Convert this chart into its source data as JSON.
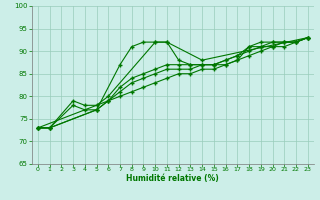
{
  "background_color": "#cceee8",
  "grid_color": "#99ccbb",
  "line_color": "#007700",
  "xlabel": "Humidité relative (%)",
  "xlim": [
    -0.5,
    23.5
  ],
  "ylim": [
    65,
    100
  ],
  "yticks": [
    65,
    70,
    75,
    80,
    85,
    90,
    95,
    100
  ],
  "xticks": [
    0,
    1,
    2,
    3,
    4,
    5,
    6,
    7,
    8,
    9,
    10,
    11,
    12,
    13,
    14,
    15,
    16,
    17,
    18,
    19,
    20,
    21,
    22,
    23
  ],
  "line_a_x": [
    0,
    1,
    3,
    4,
    5,
    7,
    8,
    9,
    10,
    11,
    12,
    13,
    14,
    15,
    16,
    17,
    18,
    19,
    20,
    21,
    22,
    23
  ],
  "line_a_y": [
    73,
    73,
    78,
    77,
    77,
    87,
    91,
    92,
    92,
    92,
    88,
    87,
    87,
    87,
    87,
    88,
    91,
    92,
    92,
    92,
    92,
    93
  ],
  "line_b_x": [
    0,
    1,
    3,
    4,
    5,
    6,
    10,
    11,
    14,
    23
  ],
  "line_b_y": [
    73,
    73,
    79,
    78,
    78,
    80,
    92,
    92,
    88,
    93
  ],
  "line_c_x": [
    0,
    1,
    5,
    6,
    7,
    8,
    9,
    10,
    11,
    12,
    13,
    14,
    15,
    16,
    17,
    18,
    19,
    20,
    21,
    22,
    23
  ],
  "line_c_y": [
    73,
    73,
    77,
    79,
    82,
    84,
    85,
    86,
    87,
    87,
    87,
    87,
    87,
    88,
    89,
    91,
    91,
    92,
    92,
    92,
    93
  ],
  "line_d_x": [
    0,
    1,
    5,
    6,
    7,
    8,
    9,
    10,
    11,
    12,
    13,
    14,
    15,
    16,
    17,
    18,
    19,
    20,
    21,
    22,
    23
  ],
  "line_d_y": [
    73,
    73,
    77,
    79,
    81,
    83,
    84,
    85,
    86,
    86,
    86,
    87,
    87,
    88,
    89,
    90,
    91,
    91,
    92,
    92,
    93
  ],
  "line_e_x": [
    0,
    6,
    7,
    8,
    9,
    10,
    11,
    12,
    13,
    14,
    15,
    16,
    17,
    18,
    19,
    20,
    21,
    22,
    23
  ],
  "line_e_y": [
    73,
    79,
    80,
    81,
    82,
    83,
    84,
    85,
    85,
    86,
    86,
    87,
    88,
    89,
    90,
    91,
    91,
    92,
    93
  ]
}
